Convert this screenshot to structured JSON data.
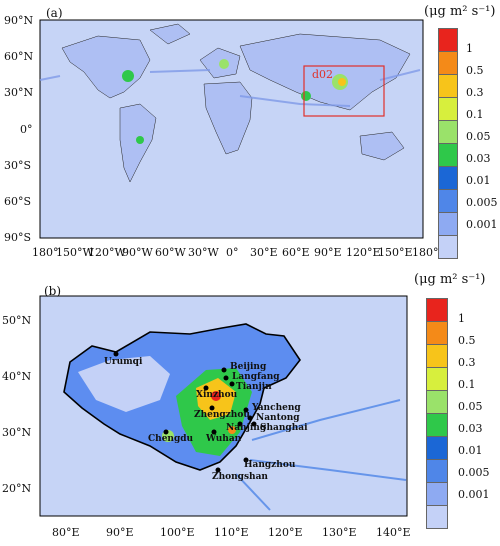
{
  "panel_a": {
    "label": "(a)",
    "domain_label": "d02",
    "lat_ticks": [
      "90°N",
      "60°N",
      "30°N",
      "0°",
      "30°S",
      "60°S",
      "90°S"
    ],
    "lon_ticks": [
      "180°",
      "150°W",
      "120°W",
      "90°W",
      "60°W",
      "30°W",
      "0°",
      "30°E",
      "60°E",
      "90°E",
      "120°E",
      "150°E",
      "180°"
    ]
  },
  "panel_b": {
    "label": "(b)",
    "lat_ticks": [
      "50°N",
      "40°N",
      "30°N",
      "20°N"
    ],
    "lon_ticks": [
      "80°E",
      "90°E",
      "100°E",
      "110°E",
      "120°E",
      "130°E",
      "140°E"
    ],
    "cities": [
      "Urumqi",
      "Beijing",
      "Langfang",
      "Tianjin",
      "Xinzhou",
      "Zhengzhou",
      "Yancheng",
      "Nantong",
      "Shanghai",
      "Nanjing",
      "Wuhan",
      "Chengdu",
      "Hangzhou",
      "Zhongshan"
    ]
  },
  "legend": {
    "unit": "(μg m² s⁻¹)",
    "levels": [
      "1",
      "0.5",
      "0.3",
      "0.1",
      "0.05",
      "0.03",
      "0.01",
      "0.005",
      "0.001"
    ],
    "colors": [
      "#e8241d",
      "#f48a18",
      "#f7c41a",
      "#d7ef3d",
      "#9ae26a",
      "#2fc84a",
      "#1b67d6",
      "#4f86e8",
      "#8eaaf2",
      "#c4d1f7"
    ]
  }
}
